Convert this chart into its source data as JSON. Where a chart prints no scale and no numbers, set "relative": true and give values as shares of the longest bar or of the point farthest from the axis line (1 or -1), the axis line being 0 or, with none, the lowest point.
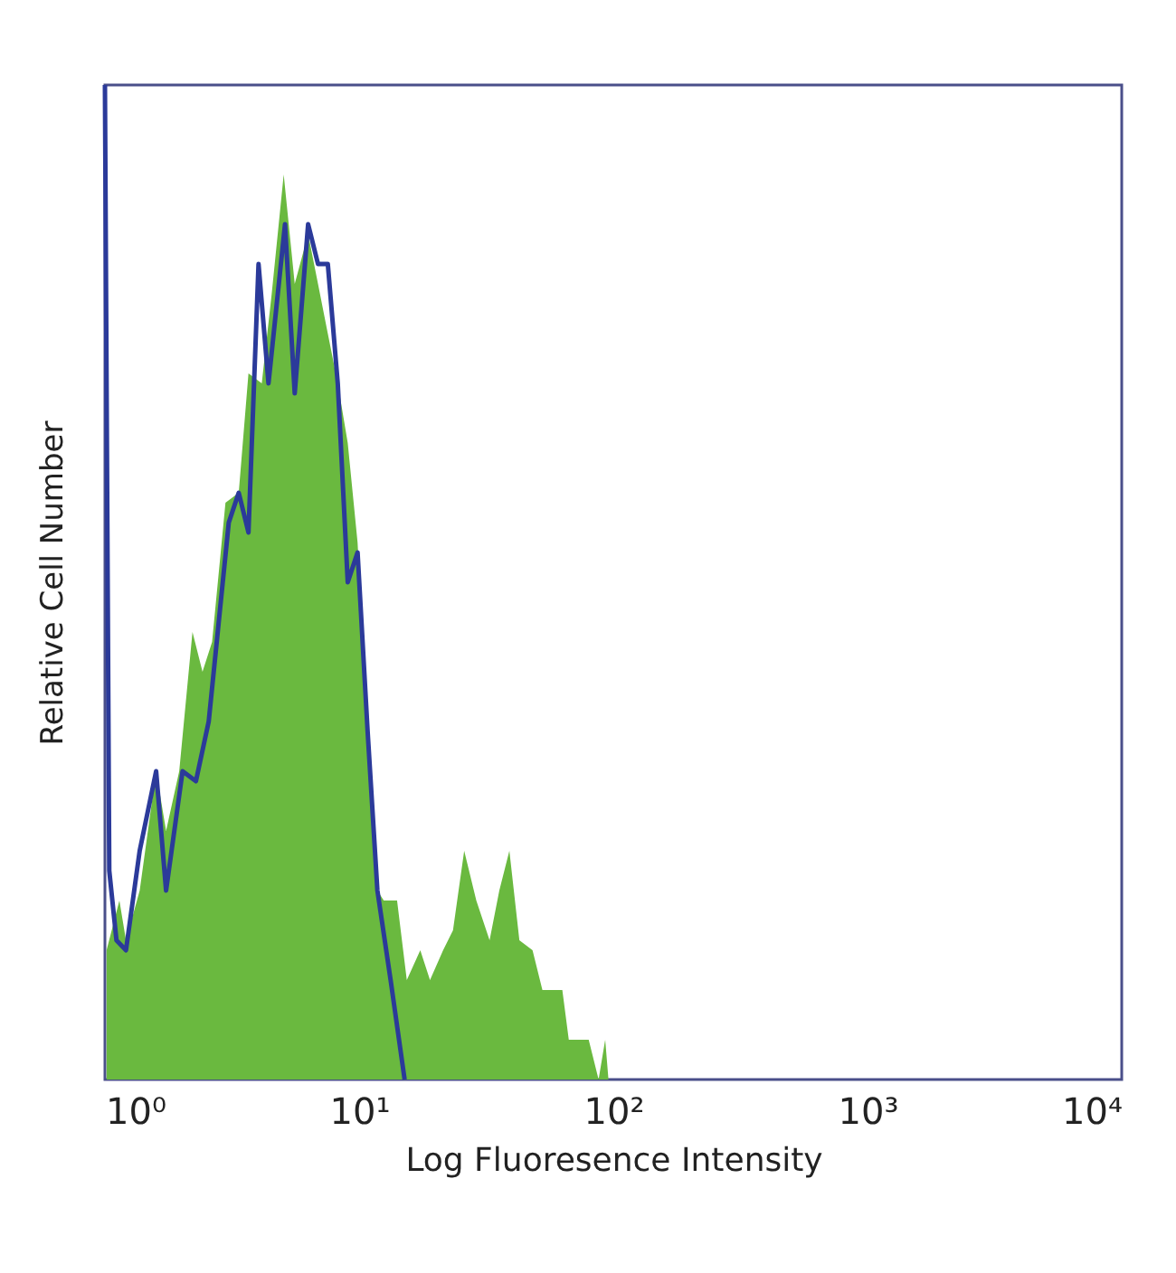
{
  "chart_data": {
    "type": "area",
    "xlabel": "Log Fluoresence Intensity",
    "ylabel": "Relative Cell Number",
    "relative": true,
    "log": "x",
    "xlim": [
      1,
      10000
    ],
    "xticks": [
      {
        "value": 1,
        "label": "10⁰"
      },
      {
        "value": 10,
        "label": "10¹"
      },
      {
        "value": 100,
        "label": "10²"
      },
      {
        "value": 1000,
        "label": "10³"
      },
      {
        "value": 10000,
        "label": "10⁴"
      }
    ],
    "series": [
      {
        "color": "#6ab93f",
        "x": [
          1.015,
          1.14,
          1.21,
          1.37,
          1.59,
          1.74,
          1.96,
          2.21,
          2.42,
          2.64,
          2.98,
          3.36,
          3.67,
          4.14,
          4.53,
          5.05,
          5.58,
          6.3,
          6.89,
          7.53,
          8.24,
          9.02,
          9.86,
          10.8,
          11.8,
          12.5,
          14.1,
          15.4,
          17.4,
          19.0,
          21.4,
          23.4,
          25.9,
          28.9,
          32.6,
          35.6,
          39.0,
          42.7,
          48.1,
          52.6,
          63.0,
          66.8,
          80.0,
          87.5,
          92.9,
          95.7
        ],
        "values": [
          0.13,
          0.18,
          0.14,
          0.19,
          0.31,
          0.25,
          0.31,
          0.45,
          0.41,
          0.44,
          0.58,
          0.59,
          0.71,
          0.7,
          0.79,
          0.91,
          0.8,
          0.85,
          0.8,
          0.75,
          0.7,
          0.64,
          0.54,
          0.35,
          0.19,
          0.18,
          0.18,
          0.1,
          0.13,
          0.1,
          0.13,
          0.15,
          0.23,
          0.18,
          0.14,
          0.19,
          0.23,
          0.14,
          0.13,
          0.09,
          0.09,
          0.04,
          0.04,
          0.0,
          0.04,
          0.0
        ]
      },
      {
        "type": "line",
        "color": "#2b3a9a",
        "x": [
          1,
          1.04,
          1.11,
          1.21,
          1.37,
          1.59,
          1.74,
          2.02,
          2.28,
          2.56,
          3.07,
          3.36,
          3.67,
          4.02,
          4.4,
          5.11,
          5.58,
          6.3,
          6.89,
          7.53,
          8.24,
          9.02,
          9.86,
          10.8,
          11.8,
          13.3,
          15.1
        ],
        "values": [
          1,
          0.21,
          0.14,
          0.13,
          0.23,
          0.31,
          0.19,
          0.31,
          0.3,
          0.36,
          0.56,
          0.59,
          0.55,
          0.82,
          0.7,
          0.86,
          0.69,
          0.86,
          0.82,
          0.82,
          0.7,
          0.5,
          0.53,
          0.35,
          0.19,
          0.1,
          0.0
        ]
      }
    ]
  }
}
